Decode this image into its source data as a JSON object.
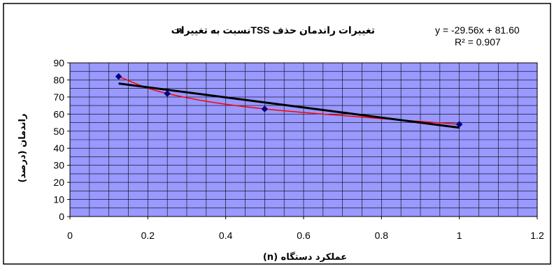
{
  "chart_data": {
    "type": "scatter",
    "title_line1": "تغییرات راندمان حذف  TSSنسبت به تغییرات",
    "title_line2": "n",
    "xlabel": "عملکرد دستگاه (n)",
    "ylabel": "راندمان (درصد)",
    "xlim": [
      0,
      1.2
    ],
    "ylim": [
      0,
      90
    ],
    "x_ticks": [
      "0",
      "0.2",
      "0.4",
      "0.6",
      "0.8",
      "1",
      "1.2"
    ],
    "y_ticks": [
      "0",
      "10",
      "20",
      "30",
      "40",
      "50",
      "60",
      "70",
      "80",
      "90"
    ],
    "grid": true,
    "series": [
      {
        "x": [
          0.125,
          0.25,
          0.5,
          1.0
        ],
        "y": [
          82,
          72,
          63,
          54
        ],
        "marker": "diamond",
        "color": "#000080"
      }
    ],
    "smooth_curve_color": "#ff0000",
    "trendline": {
      "equation": "y = -29.56x + 81.60",
      "r2": "R² = 0.907",
      "slope": -29.56,
      "intercept": 81.6,
      "x_range": [
        0.125,
        1.0
      ],
      "color": "#000000"
    },
    "plot_background": "#9999ff",
    "grid_color": "#000000"
  }
}
